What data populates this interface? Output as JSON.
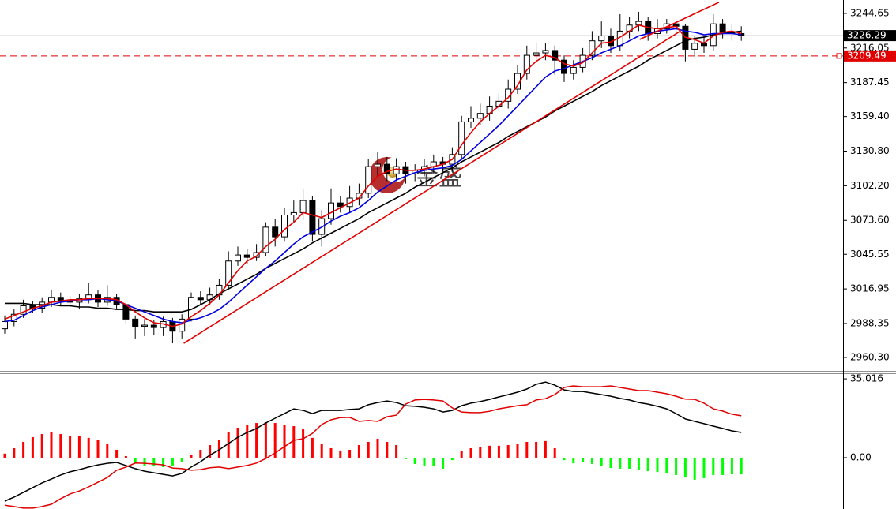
{
  "chart_data": [
    {
      "type": "candlestick",
      "watermark": "金盛",
      "ylim": [
        2949.2,
        3255.7
      ],
      "yticks": [
        3244.65,
        3216.05,
        3187.45,
        {
          "value": 3159.4,
          "label": "3159.40"
        },
        {
          "value": 3130.8,
          "label": "3130.80"
        },
        {
          "value": 3102.2,
          "label": "3102.20"
        },
        {
          "value": 3073.6,
          "label": "3073.60"
        },
        3045.55,
        3016.95,
        2988.35,
        {
          "value": 2960.3,
          "label": "2960.30"
        }
      ],
      "current_price": 3226.29,
      "alert_line": 3209.49,
      "up_color": "#ffffff",
      "down_color": "#000000",
      "open": [
        2984,
        2990,
        2996,
        3003,
        3001,
        3006,
        3010,
        3007,
        3006,
        3009,
        3012,
        3006,
        3010,
        3004,
        2992,
        2986,
        2987,
        2985,
        2990,
        2982,
        2992,
        3010,
        3008,
        3012,
        3020,
        3040,
        3045,
        3043,
        3047,
        3068,
        3060,
        3078,
        3080,
        3090,
        3062,
        3075,
        3088,
        3085,
        3092,
        3096,
        3118,
        3120,
        3112,
        3118,
        3112,
        3115,
        3118,
        3122,
        3120,
        3128,
        3155,
        3158,
        3162,
        3168,
        3172,
        3182,
        3195,
        3210,
        3212,
        3214,
        3206,
        3195,
        3200,
        3210,
        3222,
        3226,
        3218,
        3230,
        3235,
        3238,
        3228,
        3232,
        3236,
        3234,
        3215,
        3220,
        3218,
        3236,
        3229,
        3228
      ],
      "high": [
        2995,
        3000,
        3008,
        3007,
        3010,
        3016,
        3014,
        3011,
        3013,
        3022,
        3016,
        3020,
        3013,
        3006,
        2995,
        2992,
        2991,
        2994,
        2993,
        2996,
        3014,
        3015,
        3018,
        3025,
        3048,
        3052,
        3050,
        3054,
        3072,
        3075,
        3084,
        3090,
        3100,
        3094,
        3082,
        3100,
        3094,
        3102,
        3104,
        3124,
        3130,
        3126,
        3125,
        3122,
        3120,
        3124,
        3128,
        3126,
        3134,
        3160,
        3168,
        3170,
        3176,
        3178,
        3190,
        3202,
        3218,
        3220,
        3220,
        3218,
        3210,
        3206,
        3216,
        3230,
        3238,
        3232,
        3244,
        3242,
        3246,
        3242,
        3240,
        3240,
        3238,
        3236,
        3226,
        3226,
        3244,
        3240,
        3236,
        3234
      ],
      "low": [
        2980,
        2986,
        2993,
        2997,
        2997,
        3002,
        3003,
        3002,
        3000,
        3005,
        3002,
        3003,
        3000,
        2988,
        2976,
        2978,
        2979,
        2978,
        2972,
        2976,
        2990,
        3004,
        3004,
        3008,
        3016,
        3036,
        3038,
        3040,
        3044,
        3052,
        3056,
        3072,
        3074,
        3056,
        3052,
        3070,
        3080,
        3080,
        3086,
        3092,
        3110,
        3106,
        3106,
        3104,
        3106,
        3110,
        3112,
        3114,
        3114,
        3124,
        3150,
        3152,
        3156,
        3164,
        3166,
        3178,
        3190,
        3204,
        3206,
        3194,
        3188,
        3190,
        3196,
        3206,
        3216,
        3212,
        3214,
        3224,
        3230,
        3222,
        3224,
        3228,
        3228,
        3205,
        3210,
        3212,
        3214,
        3224,
        3222,
        3222
      ],
      "close": [
        2990,
        2996,
        3003,
        3001,
        3006,
        3010,
        3007,
        3006,
        3009,
        3012,
        3006,
        3010,
        3004,
        2992,
        2986,
        2987,
        2985,
        2990,
        2982,
        2992,
        3010,
        3008,
        3012,
        3020,
        3040,
        3045,
        3043,
        3047,
        3068,
        3060,
        3078,
        3080,
        3090,
        3062,
        3075,
        3088,
        3085,
        3092,
        3096,
        3118,
        3120,
        3112,
        3118,
        3112,
        3115,
        3118,
        3122,
        3120,
        3128,
        3155,
        3158,
        3162,
        3168,
        3172,
        3182,
        3195,
        3210,
        3212,
        3214,
        3206,
        3195,
        3200,
        3210,
        3222,
        3226,
        3218,
        3230,
        3235,
        3238,
        3228,
        3232,
        3236,
        3234,
        3215,
        3220,
        3218,
        3236,
        3229,
        3228,
        3226.29
      ],
      "overlays": [
        {
          "color": "#000000",
          "values": [
            3005,
            3005,
            3005,
            3004,
            3004,
            3004,
            3003,
            3003,
            3002,
            3002,
            3001,
            3001,
            3000,
            3000,
            2999,
            2999,
            2998,
            2998,
            2998,
            2998,
            3000,
            3004,
            3008,
            3013,
            3017,
            3021,
            3025,
            3029,
            3034,
            3038,
            3042,
            3046,
            3050,
            3055,
            3059,
            3063,
            3067,
            3071,
            3075,
            3080,
            3084,
            3088,
            3092,
            3096,
            3101,
            3105,
            3109,
            3113,
            3117,
            3122,
            3126,
            3130,
            3134,
            3138,
            3143,
            3147,
            3151,
            3155,
            3159,
            3164,
            3168,
            3172,
            3176,
            3180,
            3185,
            3189,
            3193,
            3197,
            3201,
            3206,
            3210,
            3214,
            3218,
            3222,
            3224,
            3225,
            3227,
            3228,
            3229,
            3230
          ]
        },
        {
          "color": "#0000e0",
          "values": [
            2990,
            2991,
            2995,
            2999,
            3002,
            3004,
            3006,
            3007,
            3008,
            3008,
            3009,
            3008,
            3007,
            3004,
            3001,
            2998,
            2995,
            2992,
            2990,
            2989,
            2991,
            2993,
            2996,
            3000,
            3006,
            3013,
            3020,
            3027,
            3034,
            3040,
            3047,
            3054,
            3060,
            3064,
            3068,
            3073,
            3077,
            3080,
            3084,
            3090,
            3097,
            3102,
            3107,
            3110,
            3113,
            3115,
            3116,
            3117,
            3119,
            3124,
            3131,
            3138,
            3145,
            3152,
            3160,
            3168,
            3176,
            3184,
            3192,
            3197,
            3199,
            3202,
            3205,
            3208,
            3212,
            3215,
            3218,
            3222,
            3226,
            3228,
            3230,
            3231,
            3232,
            3230,
            3229,
            3227,
            3228,
            3228,
            3228,
            3227
          ]
        },
        {
          "color": "#e00000",
          "values": [
            2992,
            2995,
            2998,
            3001,
            3003,
            3006,
            3007,
            3008,
            3008,
            3009,
            3009,
            3009,
            3008,
            3004,
            2998,
            2993,
            2989,
            2988,
            2986,
            2988,
            2994,
            2999,
            3005,
            3012,
            3022,
            3032,
            3040,
            3044,
            3052,
            3058,
            3066,
            3072,
            3080,
            3078,
            3076,
            3080,
            3084,
            3088,
            3092,
            3102,
            3110,
            3114,
            3116,
            3115,
            3115,
            3116,
            3118,
            3120,
            3124,
            3136,
            3146,
            3155,
            3162,
            3168,
            3175,
            3185,
            3198,
            3205,
            3210,
            3208,
            3203,
            3201,
            3204,
            3212,
            3220,
            3221,
            3225,
            3230,
            3235,
            3233,
            3232,
            3233,
            3234,
            3225,
            3223,
            3220,
            3226,
            3229,
            3230,
            3228
          ]
        }
      ],
      "trendlines": [
        {
          "color": "#e00000",
          "x": [
            19.2,
            72.4
          ],
          "values": [
            2972.0,
            3229.7
          ]
        },
        {
          "color": "#e00000",
          "x": [
            68.1,
            76.6
          ],
          "values": [
            3223.1,
            3253.8
          ]
        }
      ]
    },
    {
      "type": "macd",
      "ylim": [
        -22.8,
        37.5
      ],
      "yticks": [
        35.016,
        {
          "value": 0,
          "label": "0.00"
        }
      ],
      "up_color": "#ff0000",
      "down_color": "#00ff00",
      "histogram": [
        1.8,
        4.2,
        7.0,
        9.1,
        10.5,
        11.2,
        10.5,
        9.8,
        9.5,
        8.8,
        7.7,
        6.3,
        3.5,
        0.7,
        -2.5,
        -3.5,
        -3.9,
        -4.2,
        -3.5,
        -2.1,
        1.4,
        3.5,
        5.6,
        7.7,
        11.2,
        13.3,
        14.7,
        15.4,
        15.8,
        15.4,
        14.7,
        14.0,
        12.6,
        8.8,
        6.3,
        4.2,
        3.2,
        3.5,
        5.6,
        7.0,
        8.4,
        7.0,
        5.6,
        -0.7,
        -2.8,
        -3.5,
        -3.9,
        -4.9,
        -1.1,
        2.8,
        4.2,
        4.9,
        5.3,
        5.3,
        5.6,
        6.0,
        7.0,
        7.0,
        7.4,
        4.2,
        -1.1,
        -2.5,
        -2.1,
        -2.8,
        -3.5,
        -4.6,
        -4.9,
        -4.9,
        -5.3,
        -6.0,
        -6.3,
        -6.7,
        -7.7,
        -8.8,
        -9.8,
        -9.1,
        -7.7,
        -7.7,
        -7.4,
        -7.4
      ],
      "series": [
        {
          "color": "#000000",
          "values": [
            -19.3,
            -17.5,
            -15.4,
            -13.3,
            -11.2,
            -9.5,
            -7.7,
            -6.3,
            -5.3,
            -4.2,
            -3.2,
            -2.5,
            -2.1,
            -3.5,
            -4.9,
            -6.0,
            -6.7,
            -7.4,
            -8.1,
            -7.0,
            -4.2,
            -1.8,
            1.1,
            3.5,
            6.3,
            9.1,
            11.2,
            13.0,
            15.4,
            17.5,
            19.6,
            21.7,
            21.0,
            19.6,
            21.0,
            21.0,
            21.0,
            21.4,
            21.7,
            23.5,
            24.5,
            25.2,
            24.5,
            23.1,
            22.8,
            22.4,
            21.7,
            20.3,
            21.0,
            23.1,
            24.2,
            24.9,
            25.9,
            27.0,
            28.0,
            29.1,
            30.5,
            32.6,
            33.6,
            32.2,
            30.1,
            29.4,
            29.4,
            28.7,
            28.0,
            27.3,
            26.3,
            25.6,
            24.5,
            23.8,
            22.8,
            21.7,
            19.6,
            17.2,
            16.1,
            15.1,
            14.0,
            13.0,
            11.9,
            11.2
          ]
        },
        {
          "color": "#e00000",
          "values": [
            -21.1,
            -21.7,
            -22.4,
            -22.4,
            -21.7,
            -20.7,
            -18.2,
            -16.1,
            -14.8,
            -13.0,
            -10.9,
            -8.8,
            -5.6,
            -4.2,
            -2.4,
            -2.5,
            -2.8,
            -3.2,
            -4.6,
            -4.9,
            -5.6,
            -5.3,
            -4.5,
            -4.2,
            -4.9,
            -4.2,
            -3.5,
            -2.4,
            -0.4,
            2.1,
            4.9,
            7.7,
            8.4,
            10.8,
            14.7,
            16.8,
            17.8,
            17.9,
            16.1,
            16.5,
            16.1,
            18.2,
            18.9,
            23.8,
            25.6,
            25.9,
            25.6,
            25.2,
            22.1,
            20.3,
            20.0,
            20.0,
            20.6,
            21.7,
            22.4,
            23.1,
            23.5,
            25.6,
            26.2,
            28.0,
            31.2,
            31.9,
            31.5,
            31.5,
            31.5,
            31.9,
            31.2,
            30.5,
            29.8,
            29.8,
            29.1,
            28.4,
            27.3,
            26.0,
            25.9,
            24.2,
            21.7,
            20.7,
            19.3,
            18.6
          ]
        }
      ]
    }
  ]
}
